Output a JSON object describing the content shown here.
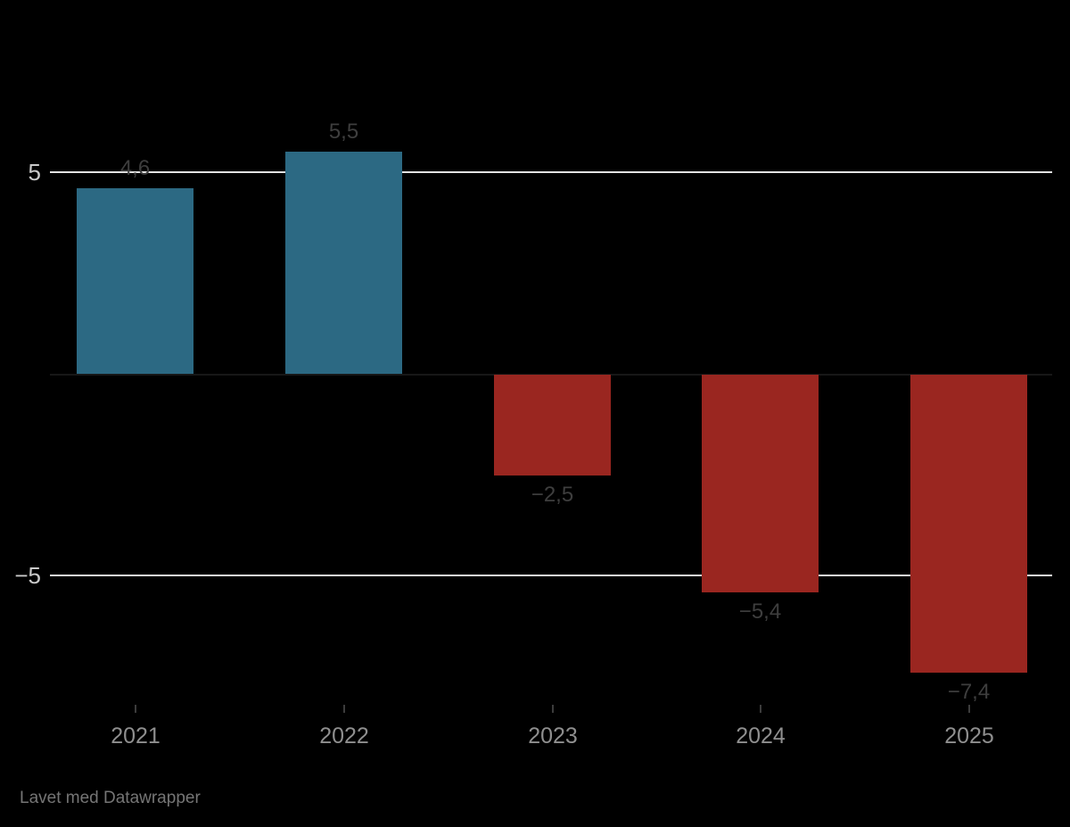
{
  "chart_data": {
    "type": "bar",
    "categories": [
      "2021",
      "2022",
      "2023",
      "2024",
      "2025"
    ],
    "values": [
      4.6,
      5.5,
      -2.5,
      -5.4,
      -7.4
    ],
    "value_labels": [
      "4,6",
      "5,5",
      "−2,5",
      "−5,4",
      "−7,4"
    ],
    "title": "",
    "xlabel": "",
    "ylabel": "",
    "ylim": [
      -8.2,
      6
    ],
    "y_gridlines": [
      {
        "value": 5,
        "label": "5"
      },
      {
        "value": -5,
        "label": "−5"
      }
    ],
    "zero_baseline": {
      "value": 0
    },
    "grid": "horizontal-only",
    "legend": "none",
    "positive_color": "#2c6983",
    "negative_color": "#9a2620",
    "background_color": "#000000"
  },
  "footer": {
    "attribution": "Lavet med Datawrapper"
  }
}
